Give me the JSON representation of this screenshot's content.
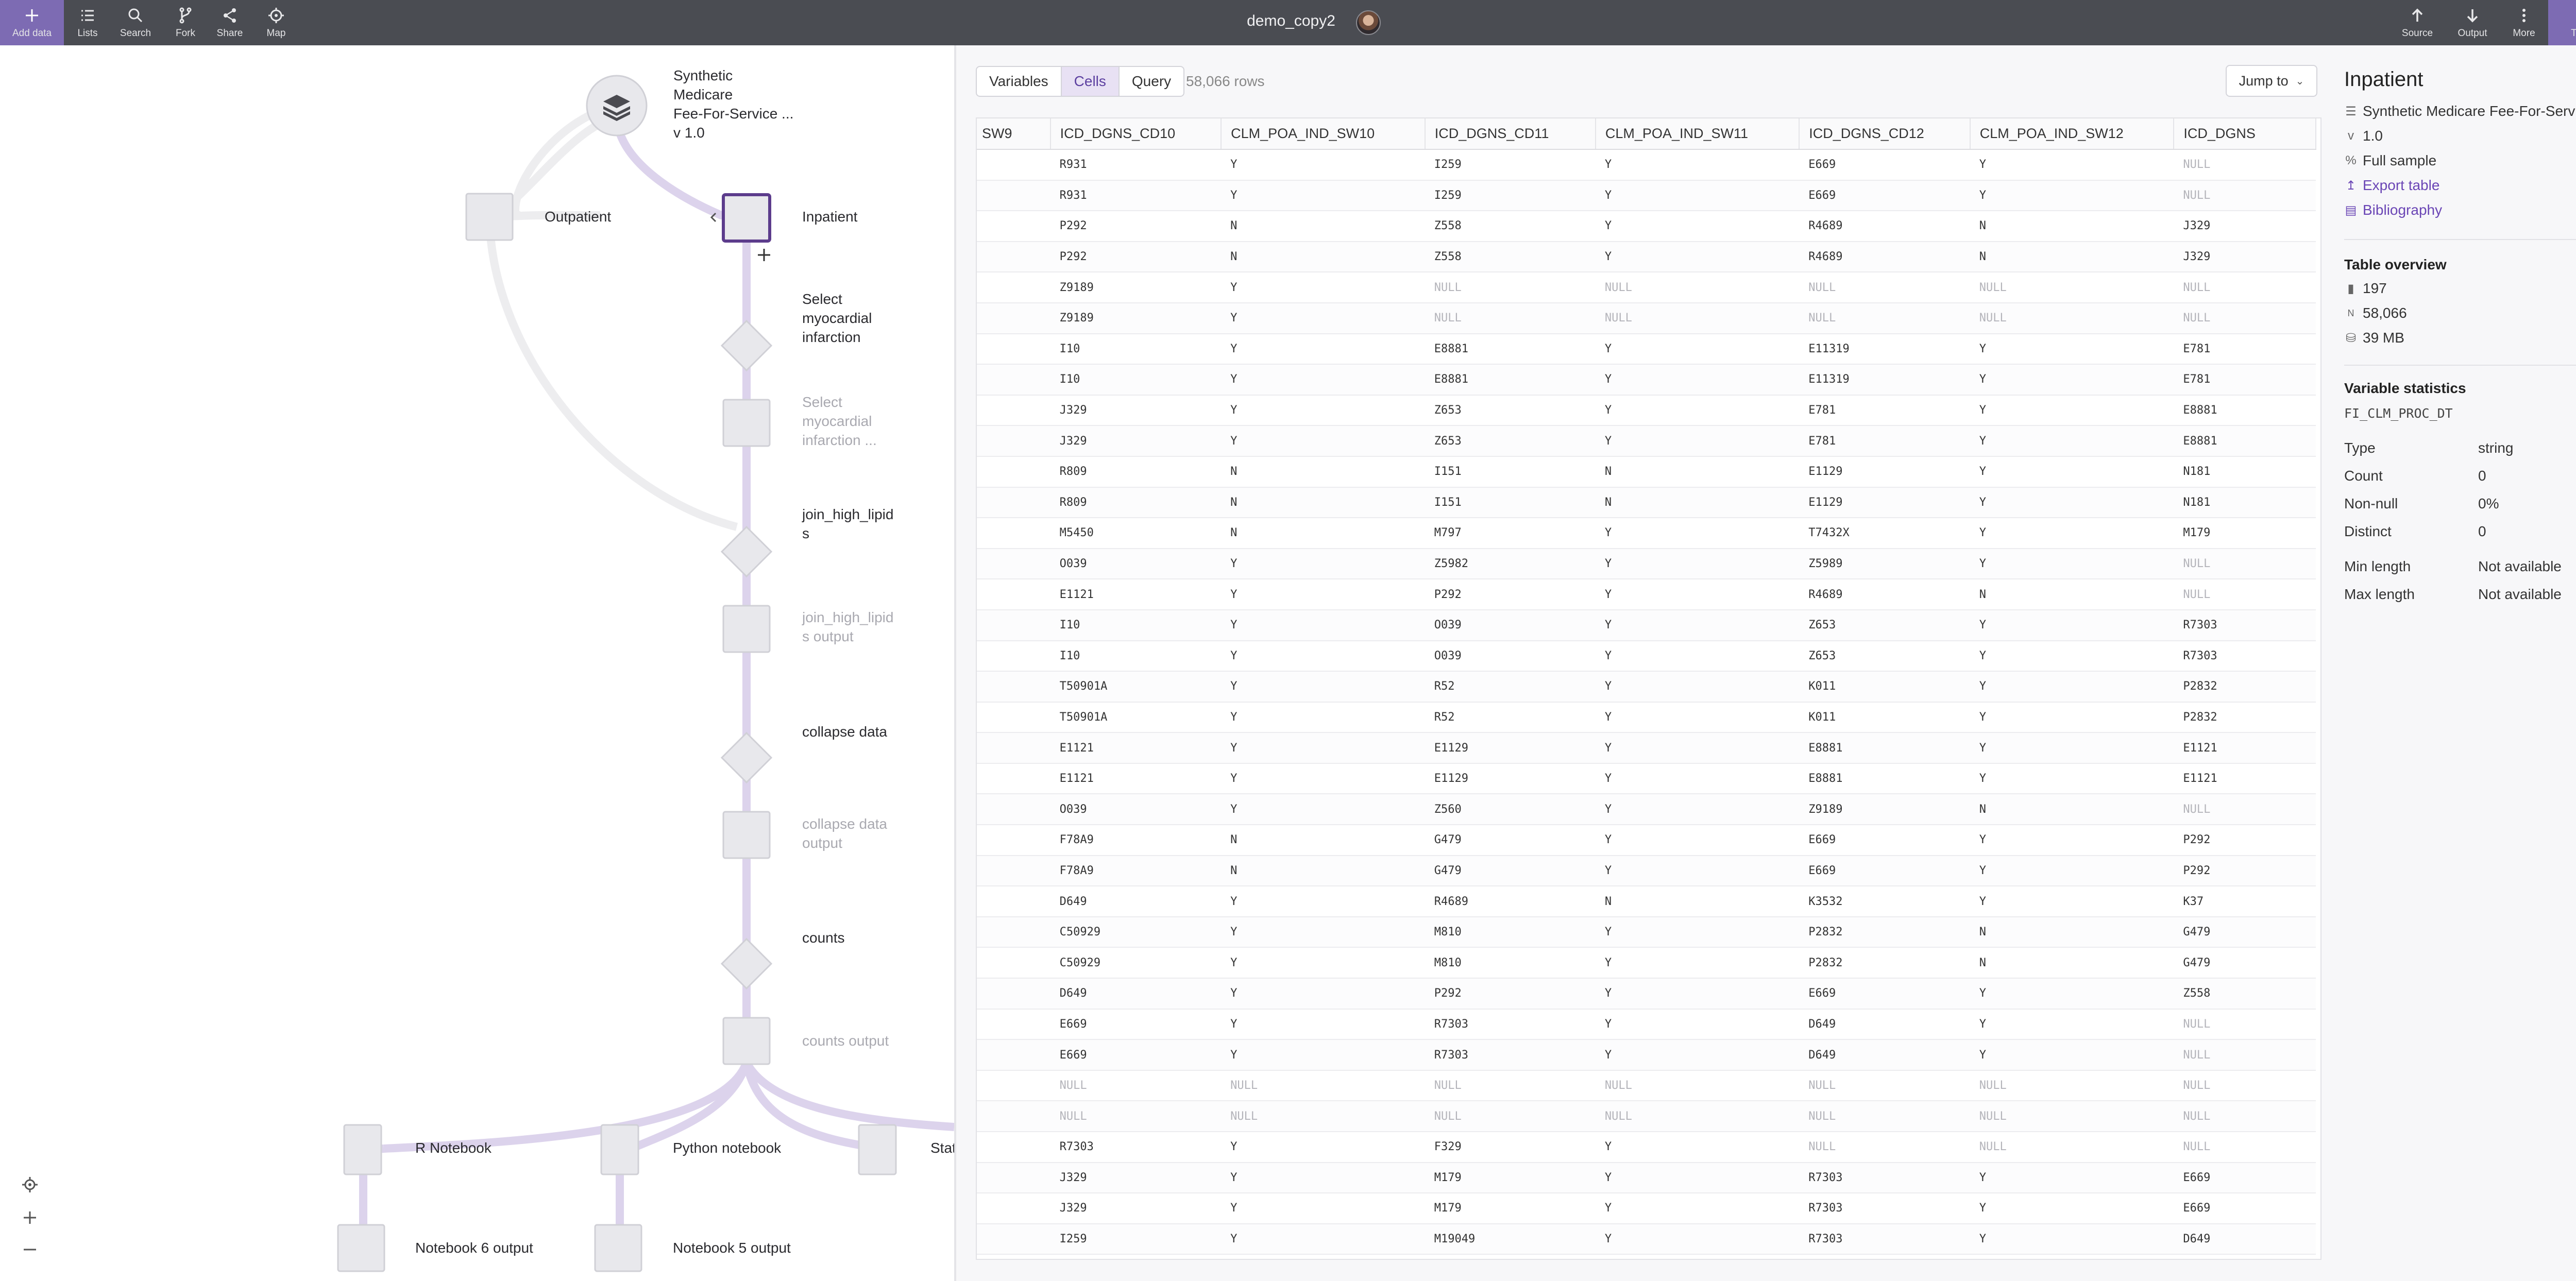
{
  "toolbar": {
    "add_data": "Add data",
    "lists": "Lists",
    "search": "Search",
    "fork": "Fork",
    "share": "Share",
    "map": "Map",
    "source": "Source",
    "output": "Output",
    "more": "More",
    "transform": "Transform",
    "title": "demo_copy2",
    "accent": "#7d6bb3"
  },
  "graph": {
    "dataset": "Synthetic\nMedicare\nFee-For-Service ...\nv 1.0",
    "outpatient": "Outpatient",
    "inpatient": "Inpatient",
    "select_mi": "Select\nmyocardial\ninfarction",
    "select_mi_output": "Select\nmyocardial\ninfarction ...",
    "join_high_lipids": "join_high_lipid\ns",
    "join_high_lipids_output": "join_high_lipid\ns output",
    "collapse_data": "collapse data",
    "collapse_data_output": "collapse data\noutput",
    "counts": "counts",
    "counts_output": "counts output",
    "r_notebook": "R Notebook",
    "python_notebook": "Python notebook",
    "stat_partial": "Stat",
    "notebook6_output": "Notebook 6 output",
    "notebook5_output": "Notebook 5 output"
  },
  "table": {
    "tabs": [
      "Variables",
      "Cells",
      "Query"
    ],
    "active_tab": "Cells",
    "row_count": "58,066 rows",
    "jump_to": "Jump to",
    "columns": [
      "SW9",
      "ICD_DGNS_CD10",
      "CLM_POA_IND_SW10",
      "ICD_DGNS_CD11",
      "CLM_POA_IND_SW11",
      "ICD_DGNS_CD12",
      "CLM_POA_IND_SW12",
      "ICD_DGNS"
    ],
    "rows": [
      [
        "",
        "R931",
        "Y",
        "I259",
        "Y",
        "E669",
        "Y",
        "NULL"
      ],
      [
        "",
        "R931",
        "Y",
        "I259",
        "Y",
        "E669",
        "Y",
        "NULL"
      ],
      [
        "",
        "P292",
        "N",
        "Z558",
        "Y",
        "R4689",
        "N",
        "J329"
      ],
      [
        "",
        "P292",
        "N",
        "Z558",
        "Y",
        "R4689",
        "N",
        "J329"
      ],
      [
        "",
        "Z9189",
        "Y",
        "NULL",
        "NULL",
        "NULL",
        "NULL",
        "NULL"
      ],
      [
        "",
        "Z9189",
        "Y",
        "NULL",
        "NULL",
        "NULL",
        "NULL",
        "NULL"
      ],
      [
        "",
        "I10",
        "Y",
        "E8881",
        "Y",
        "E11319",
        "Y",
        "E781"
      ],
      [
        "",
        "I10",
        "Y",
        "E8881",
        "Y",
        "E11319",
        "Y",
        "E781"
      ],
      [
        "",
        "J329",
        "Y",
        "Z653",
        "Y",
        "E781",
        "Y",
        "E8881"
      ],
      [
        "",
        "J329",
        "Y",
        "Z653",
        "Y",
        "E781",
        "Y",
        "E8881"
      ],
      [
        "",
        "R809",
        "N",
        "I151",
        "N",
        "E1129",
        "Y",
        "N181"
      ],
      [
        "",
        "R809",
        "N",
        "I151",
        "N",
        "E1129",
        "Y",
        "N181"
      ],
      [
        "",
        "M5450",
        "N",
        "M797",
        "Y",
        "T7432X",
        "Y",
        "M179"
      ],
      [
        "",
        "O039",
        "Y",
        "Z5982",
        "Y",
        "Z5989",
        "Y",
        "NULL"
      ],
      [
        "",
        "E1121",
        "Y",
        "P292",
        "Y",
        "R4689",
        "N",
        "NULL"
      ],
      [
        "",
        "I10",
        "Y",
        "O039",
        "Y",
        "Z653",
        "Y",
        "R7303"
      ],
      [
        "",
        "I10",
        "Y",
        "O039",
        "Y",
        "Z653",
        "Y",
        "R7303"
      ],
      [
        "",
        "T50901A",
        "Y",
        "R52",
        "Y",
        "K011",
        "Y",
        "P2832"
      ],
      [
        "",
        "T50901A",
        "Y",
        "R52",
        "Y",
        "K011",
        "Y",
        "P2832"
      ],
      [
        "",
        "E1121",
        "Y",
        "E1129",
        "Y",
        "E8881",
        "Y",
        "E1121"
      ],
      [
        "",
        "E1121",
        "Y",
        "E1129",
        "Y",
        "E8881",
        "Y",
        "E1121"
      ],
      [
        "",
        "O039",
        "Y",
        "Z560",
        "Y",
        "Z9189",
        "N",
        "NULL"
      ],
      [
        "",
        "F78A9",
        "N",
        "G479",
        "Y",
        "E669",
        "Y",
        "P292"
      ],
      [
        "",
        "F78A9",
        "N",
        "G479",
        "Y",
        "E669",
        "Y",
        "P292"
      ],
      [
        "",
        "D649",
        "Y",
        "R4689",
        "N",
        "K3532",
        "Y",
        "K37"
      ],
      [
        "",
        "C50929",
        "Y",
        "M810",
        "Y",
        "P2832",
        "N",
        "G479"
      ],
      [
        "",
        "C50929",
        "Y",
        "M810",
        "Y",
        "P2832",
        "N",
        "G479"
      ],
      [
        "",
        "D649",
        "Y",
        "P292",
        "Y",
        "E669",
        "Y",
        "Z558"
      ],
      [
        "",
        "E669",
        "Y",
        "R7303",
        "Y",
        "D649",
        "Y",
        "NULL"
      ],
      [
        "",
        "E669",
        "Y",
        "R7303",
        "Y",
        "D649",
        "Y",
        "NULL"
      ],
      [
        "",
        "NULL",
        "NULL",
        "NULL",
        "NULL",
        "NULL",
        "NULL",
        "NULL"
      ],
      [
        "",
        "NULL",
        "NULL",
        "NULL",
        "NULL",
        "NULL",
        "NULL",
        "NULL"
      ],
      [
        "",
        "R7303",
        "Y",
        "F329",
        "Y",
        "NULL",
        "NULL",
        "NULL"
      ],
      [
        "",
        "J329",
        "Y",
        "M179",
        "Y",
        "R7303",
        "Y",
        "E669"
      ],
      [
        "",
        "J329",
        "Y",
        "M179",
        "Y",
        "R7303",
        "Y",
        "E669"
      ],
      [
        "",
        "I259",
        "Y",
        "M19049",
        "Y",
        "R7303",
        "Y",
        "D649"
      ]
    ]
  },
  "inspector": {
    "title": "Inpatient",
    "dataset": "Synthetic Medicare Fee-For-Service ...",
    "version": "1.0",
    "sample": "Full sample",
    "export": "Export table",
    "bibliography": "Bibliography",
    "overview_heading": "Table overview",
    "variables": "197",
    "rows": "58,066",
    "size": "39 MB",
    "stats_heading": "Variable statistics",
    "variable_name": "FI_CLM_PROC_DT",
    "stats": [
      {
        "k": "Type",
        "v": "string"
      },
      {
        "k": "Count",
        "v": "0"
      },
      {
        "k": "Non-null",
        "v": "0%"
      },
      {
        "k": "Distinct",
        "v": "0"
      },
      {
        "k": "Min length",
        "v": "Not available"
      },
      {
        "k": "Max length",
        "v": "Not available"
      }
    ]
  }
}
